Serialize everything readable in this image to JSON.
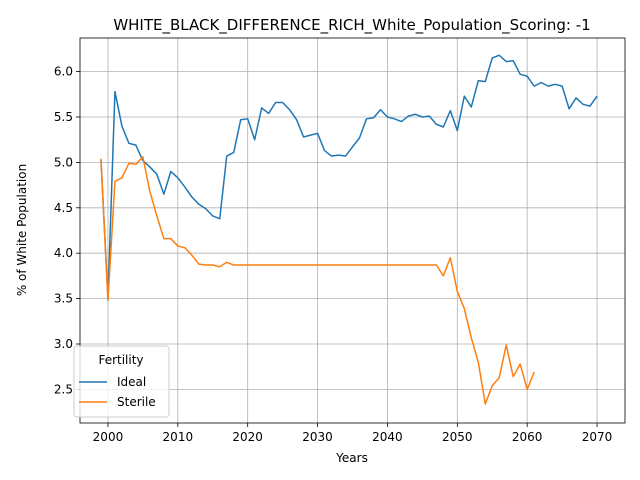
{
  "chart_data": {
    "type": "line",
    "title": "WHITE_BLACK_DIFFERENCE_RICH_White_Population_Scoring: -1",
    "xlabel": "Years",
    "ylabel": "% of White Population",
    "xlim": [
      1996,
      2074
    ],
    "ylim": [
      2.13,
      6.37
    ],
    "xticks": [
      2000,
      2010,
      2020,
      2030,
      2040,
      2050,
      2060,
      2070
    ],
    "yticks": [
      2.5,
      3.0,
      3.5,
      4.0,
      4.5,
      5.0,
      5.5,
      6.0
    ],
    "xtick_labels": [
      "2000",
      "2010",
      "2020",
      "2030",
      "2040",
      "2050",
      "2060",
      "2070"
    ],
    "ytick_labels": [
      "2.5",
      "3.0",
      "3.5",
      "4.0",
      "4.5",
      "5.0",
      "5.5",
      "6.0"
    ],
    "grid": true,
    "legend": {
      "title": "Fertility",
      "placement": "lower-left"
    },
    "series": [
      {
        "name": "Ideal",
        "color": "#1f77b4",
        "x": [
          1999,
          2000,
          2001,
          2002,
          2003,
          2004,
          2005,
          2006,
          2007,
          2008,
          2009,
          2010,
          2011,
          2012,
          2013,
          2014,
          2015,
          2016,
          2017,
          2018,
          2019,
          2020,
          2021,
          2022,
          2023,
          2024,
          2025,
          2026,
          2027,
          2028,
          2029,
          2030,
          2031,
          2032,
          2033,
          2034,
          2035,
          2036,
          2037,
          2038,
          2039,
          2040,
          2041,
          2042,
          2043,
          2044,
          2045,
          2046,
          2047,
          2048,
          2049,
          2050,
          2051,
          2052,
          2053,
          2054,
          2055,
          2056,
          2057,
          2058,
          2059,
          2060,
          2061,
          2062,
          2063,
          2064,
          2065,
          2066,
          2067,
          2068,
          2069,
          2070
        ],
        "values": [
          5.03,
          3.5,
          5.78,
          5.4,
          5.21,
          5.19,
          5.02,
          4.95,
          4.87,
          4.65,
          4.9,
          4.83,
          4.73,
          4.62,
          4.54,
          4.49,
          4.41,
          4.38,
          5.07,
          5.11,
          5.47,
          5.48,
          5.25,
          5.6,
          5.54,
          5.66,
          5.66,
          5.58,
          5.47,
          5.28,
          5.3,
          5.32,
          5.13,
          5.07,
          5.08,
          5.07,
          5.17,
          5.27,
          5.48,
          5.49,
          5.58,
          5.5,
          5.48,
          5.45,
          5.51,
          5.53,
          5.5,
          5.51,
          5.42,
          5.39,
          5.57,
          5.35,
          5.73,
          5.61,
          5.9,
          5.89,
          6.15,
          6.18,
          6.11,
          6.12,
          5.97,
          5.95,
          5.84,
          5.88,
          5.84,
          5.86,
          5.84,
          5.59,
          5.71,
          5.64,
          5.62,
          5.73
        ]
      },
      {
        "name": "Sterile",
        "color": "#ff7f0e",
        "x": [
          1999,
          2000,
          2001,
          2002,
          2003,
          2004,
          2005,
          2006,
          2007,
          2008,
          2009,
          2010,
          2011,
          2012,
          2013,
          2014,
          2015,
          2016,
          2017,
          2018,
          2019,
          2020,
          2021,
          2022,
          2023,
          2024,
          2025,
          2026,
          2027,
          2028,
          2029,
          2030,
          2031,
          2032,
          2033,
          2034,
          2035,
          2036,
          2037,
          2038,
          2039,
          2040,
          2041,
          2042,
          2043,
          2044,
          2045,
          2046,
          2047,
          2048,
          2049,
          2050,
          2051,
          2052,
          2053,
          2054,
          2055,
          2056,
          2057,
          2058,
          2059,
          2060,
          2061
        ],
        "values": [
          5.04,
          3.48,
          4.79,
          4.83,
          4.99,
          4.98,
          5.06,
          4.68,
          4.41,
          4.16,
          4.16,
          4.08,
          4.06,
          3.98,
          3.88,
          3.87,
          3.87,
          3.85,
          3.9,
          3.87,
          3.87,
          3.87,
          3.87,
          3.87,
          3.87,
          3.87,
          3.87,
          3.87,
          3.87,
          3.87,
          3.87,
          3.87,
          3.87,
          3.87,
          3.87,
          3.87,
          3.87,
          3.87,
          3.87,
          3.87,
          3.87,
          3.87,
          3.87,
          3.87,
          3.87,
          3.87,
          3.87,
          3.87,
          3.87,
          3.75,
          3.95,
          3.58,
          3.39,
          3.07,
          2.8,
          2.34,
          2.54,
          2.63,
          2.99,
          2.64,
          2.78,
          2.5,
          2.69
        ]
      }
    ]
  }
}
